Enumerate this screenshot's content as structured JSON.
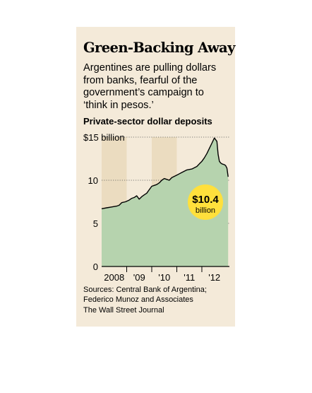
{
  "title": "Green-Backing Away",
  "subtitle": "Argentines are pulling dollars from banks, fearful of the government’s campaign to ‘think in pesos.’",
  "source": "Sources: Central Bank of Argentina; Federico Munoz and Associates",
  "credit": "The Wall Street Journal",
  "callout": {
    "value": "$10.4",
    "unit": "billion"
  },
  "colors": {
    "background": "#f4ead9",
    "band": "#ebdcc0",
    "area": "#b6d3ae",
    "line": "#000000",
    "callout": "#ffe03c"
  },
  "chart_data": {
    "type": "area",
    "title": "Private-sector dollar deposits",
    "xlabel": "",
    "ylabel": "",
    "yunit": "billion",
    "ylim": [
      0,
      15
    ],
    "yticks": [
      0,
      5,
      10,
      15
    ],
    "ytick_labels": [
      "0",
      "5",
      "10",
      "$15 billion"
    ],
    "xtick_labels": [
      "2008",
      "'09",
      "'10",
      "'11",
      "'12"
    ],
    "xlim": [
      2007.2,
      2012.3
    ],
    "grid": "dotted horizontal",
    "series": [
      {
        "x": [
          2007.2,
          2007.4,
          2007.6,
          2007.8,
          2007.9,
          2008.0,
          2008.15,
          2008.3,
          2008.4,
          2008.5,
          2008.6,
          2008.7,
          2008.8,
          2008.9,
          2009.0,
          2009.1,
          2009.2,
          2009.3,
          2009.4,
          2009.5,
          2009.6,
          2009.7,
          2009.8,
          2009.9,
          2010.0,
          2010.2,
          2010.4,
          2010.6,
          2010.8,
          2011.0,
          2011.1,
          2011.2,
          2011.3,
          2011.4,
          2011.5,
          2011.6,
          2011.7,
          2011.8,
          2011.85,
          2011.9,
          2011.95,
          2012.0,
          2012.1,
          2012.15,
          2012.2,
          2012.25
        ],
        "values": [
          6.7,
          6.8,
          6.9,
          7.0,
          7.1,
          7.4,
          7.5,
          7.7,
          7.9,
          8.0,
          8.2,
          7.8,
          8.1,
          8.3,
          8.5,
          8.9,
          9.3,
          9.4,
          9.5,
          9.7,
          10.0,
          10.2,
          10.1,
          10.0,
          10.3,
          10.6,
          10.9,
          11.2,
          11.3,
          11.6,
          11.9,
          12.2,
          12.6,
          13.1,
          13.7,
          14.3,
          14.9,
          14.5,
          13.0,
          12.2,
          12.0,
          11.9,
          11.8,
          11.7,
          11.4,
          10.4
        ]
      }
    ]
  }
}
